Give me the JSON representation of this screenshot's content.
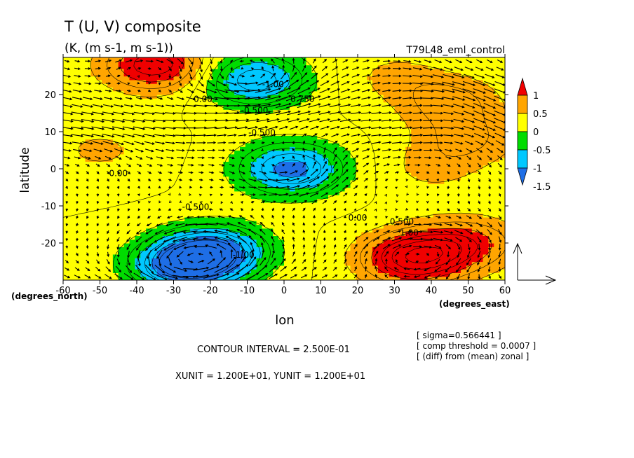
{
  "chart_data": {
    "type": "heatmap",
    "title": "T (U, V) composite",
    "subtitle": "(K, (m s-1, m s-1))",
    "run_label": "T79L48_eml_control",
    "xlabel": "lon",
    "ylabel": "latitude",
    "x_unit_label": "(degrees_east)",
    "y_unit_label": "(degrees_north)",
    "xlim": [
      -60,
      60
    ],
    "ylim": [
      -30,
      30
    ],
    "x_ticks": [
      -60,
      -50,
      -40,
      -30,
      -20,
      -10,
      0,
      10,
      20,
      30,
      40,
      50,
      60
    ],
    "y_ticks": [
      -20,
      -10,
      0,
      10,
      20
    ],
    "colorbar": {
      "levels": [
        -1.5,
        -1,
        -0.5,
        0,
        0.5,
        1
      ],
      "labels": [
        "1",
        "0.5",
        "0",
        "-0.5",
        "-1",
        "-1.5"
      ],
      "colors": [
        "#1e6ee6",
        "#00c8ff",
        "#00dc00",
        "#ffff00",
        "#ffa500",
        "#f00000"
      ]
    },
    "anomaly_centers": [
      {
        "lon": -27,
        "lat": -26,
        "value": -1.6
      },
      {
        "lon": -18,
        "lat": -22,
        "value": -1.2
      },
      {
        "lon": 2,
        "lat": 0,
        "value": -1.4
      },
      {
        "lon": -8,
        "lat": 24,
        "value": -1.2
      },
      {
        "lon": 35,
        "lat": -24,
        "value": 1.4
      },
      {
        "lon": 50,
        "lat": -20,
        "value": 0.8
      },
      {
        "lon": -35,
        "lat": 28,
        "value": 1.2
      },
      {
        "lon": 45,
        "lat": 18,
        "value": 0.6
      },
      {
        "lon": 50,
        "lat": 8,
        "value": 0.5
      },
      {
        "lon": 40,
        "lat": 0,
        "value": 0.3
      },
      {
        "lon": -50,
        "lat": 5,
        "value": 0.3
      },
      {
        "lon": 30,
        "lat": 25,
        "value": 0.3
      }
    ],
    "background_value": -0.25,
    "contour_labels": [
      {
        "lon": -22,
        "lat": 18,
        "text": "0.00"
      },
      {
        "lon": -8,
        "lat": 15,
        "text": "-0.500"
      },
      {
        "lon": -6,
        "lat": 9,
        "text": "-0.500"
      },
      {
        "lon": 5,
        "lat": 18,
        "text": "0.750"
      },
      {
        "lon": -3,
        "lat": 22,
        "text": "-1.00"
      },
      {
        "lon": -45,
        "lat": -2,
        "text": "0.00"
      },
      {
        "lon": -24,
        "lat": -11,
        "text": "-0.500"
      },
      {
        "lon": -11,
        "lat": -24,
        "text": "-1.00"
      },
      {
        "lon": 20,
        "lat": -14,
        "text": "0.00"
      },
      {
        "lon": 32,
        "lat": -15,
        "text": "0.500"
      },
      {
        "lon": 34,
        "lat": -18,
        "text": "1.00"
      }
    ],
    "annotations": {
      "contour_interval": "CONTOUR INTERVAL = 2.500E-01",
      "unit_vectors": "XUNIT = 1.200E+01, YUNIT = 1.200E+01",
      "sigma": "[ sigma=0.566441 ]",
      "threshold": "[ comp threshold = 0.0007 ]",
      "diff": "[ (diff) from (mean) zonal ]"
    }
  }
}
